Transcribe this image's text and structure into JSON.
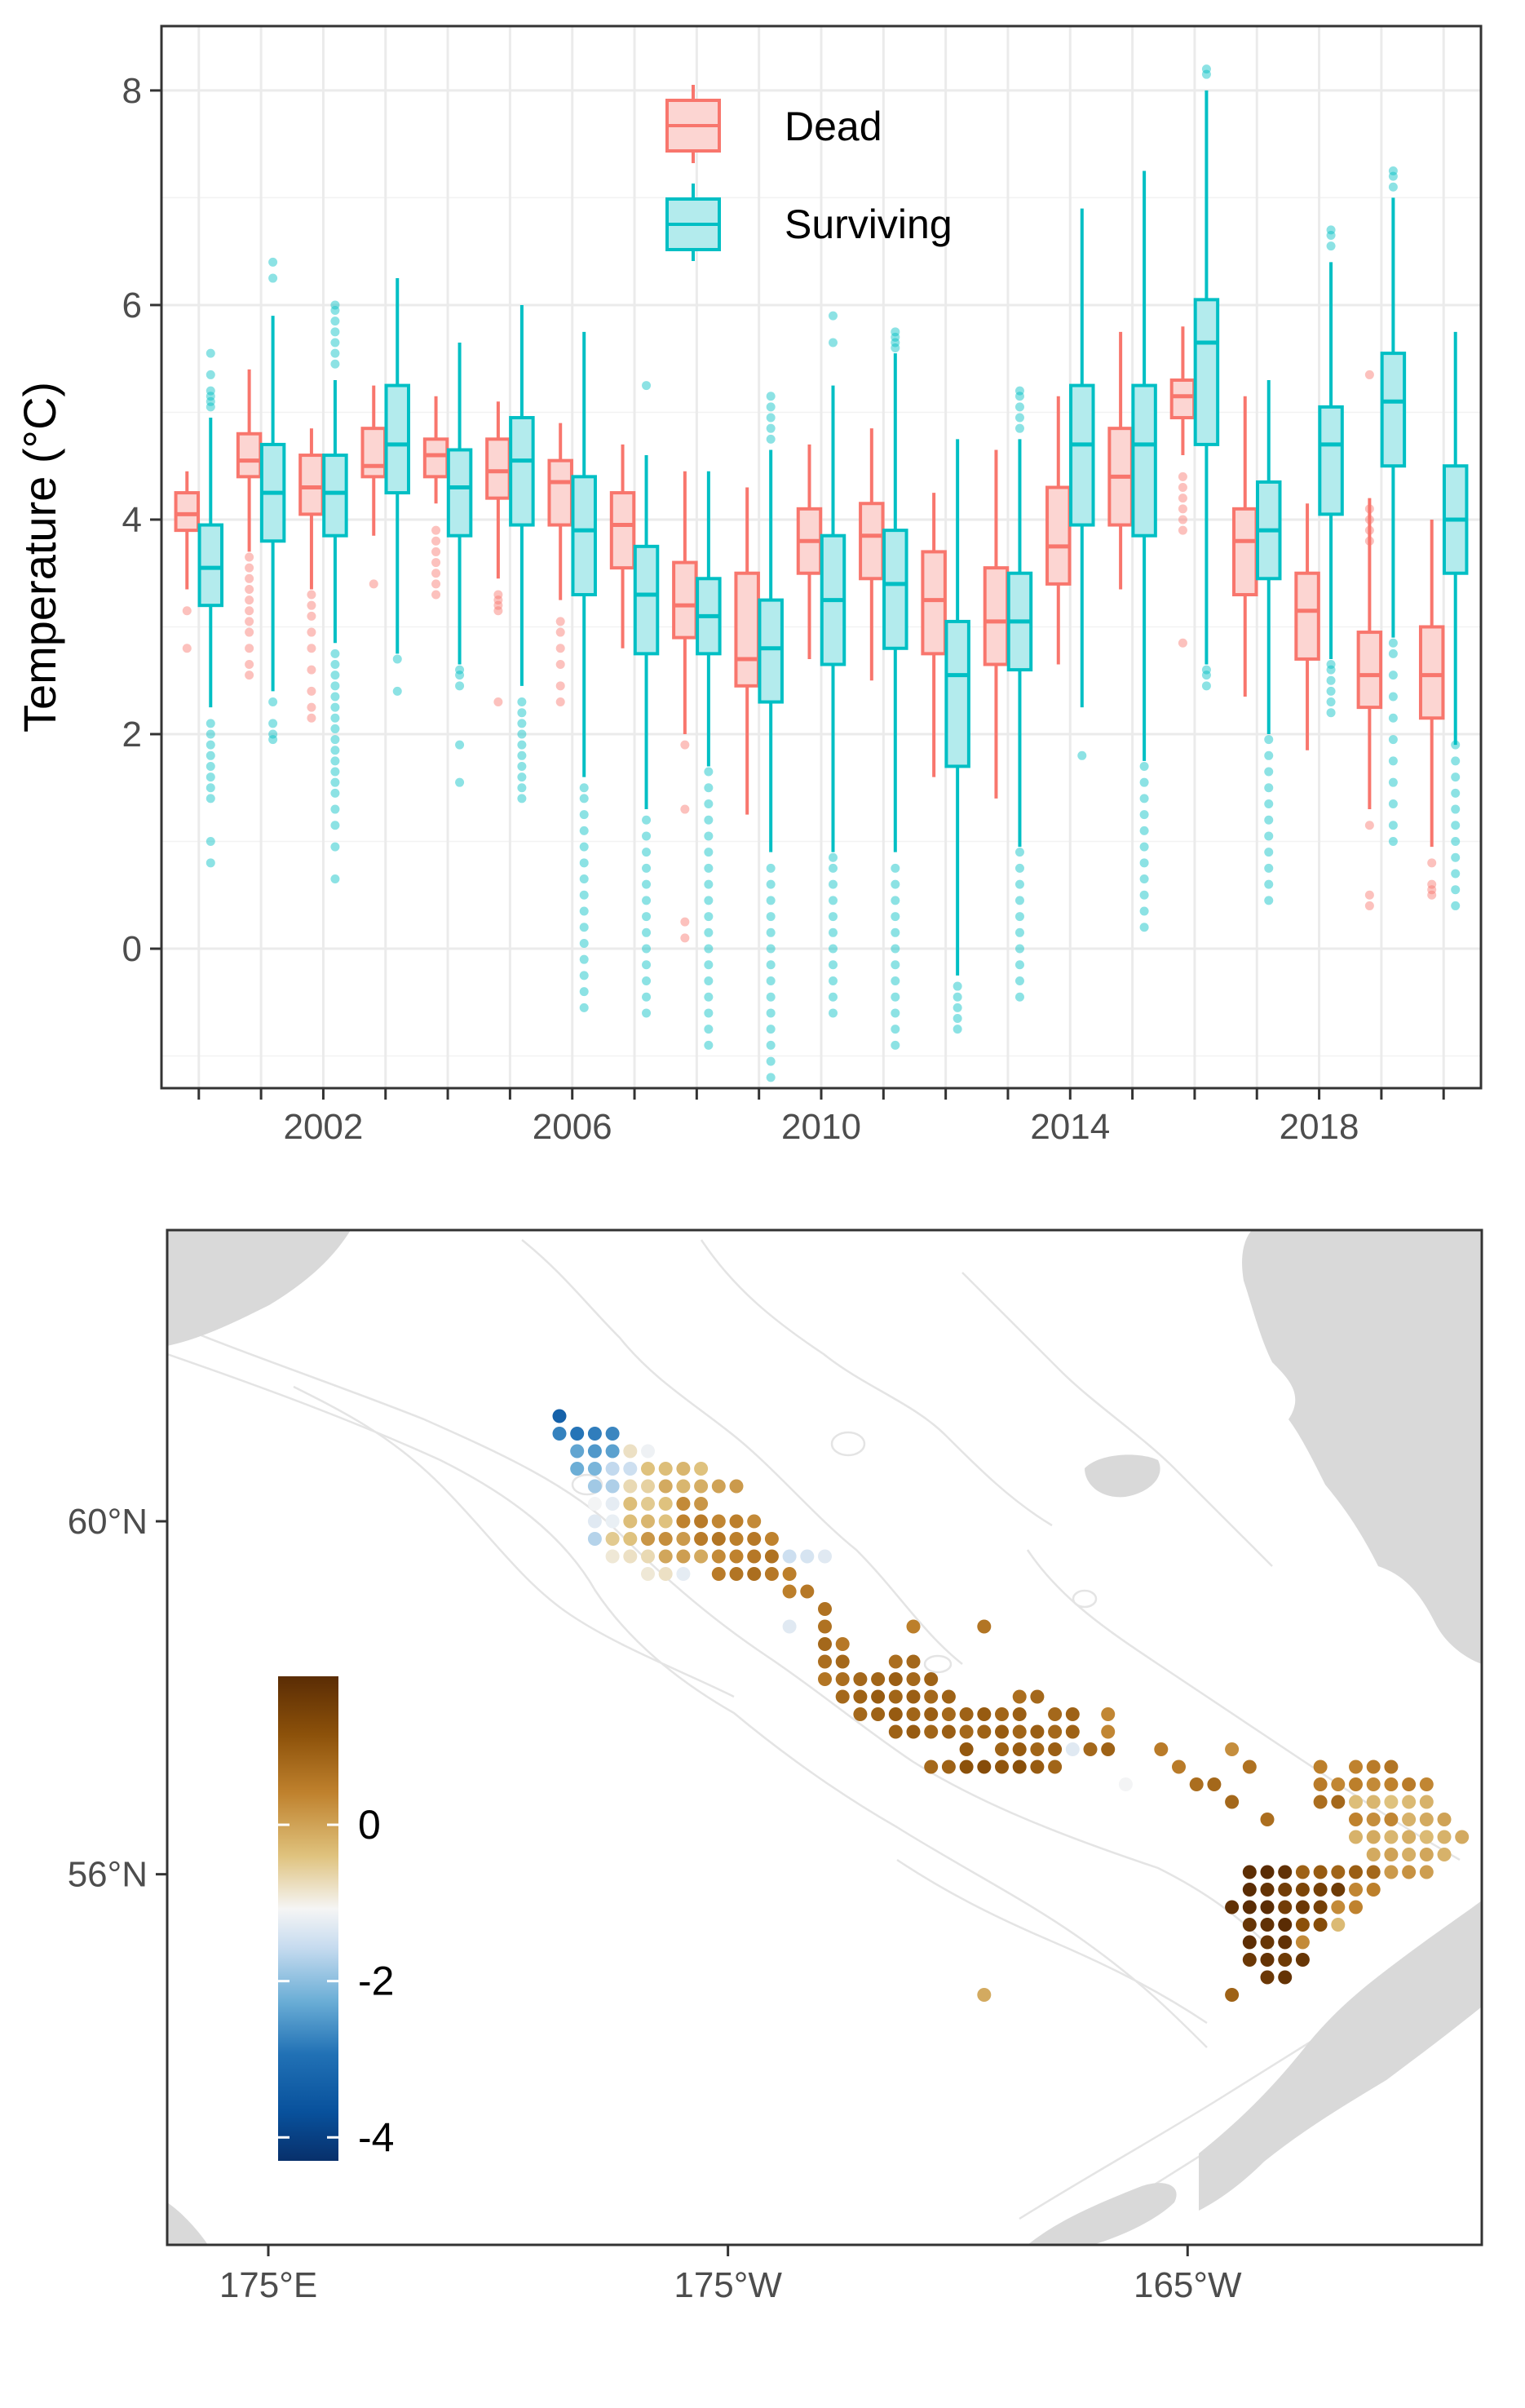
{
  "chart_data": [
    {
      "type": "box",
      "title": "",
      "xlabel": "",
      "ylabel": "Temperature (°C)",
      "ylim": [
        -1.3,
        8.6
      ],
      "yticks": [
        0,
        2,
        4,
        6,
        8
      ],
      "xlim": [
        1999.4,
        2020.6
      ],
      "xtick_labels": [
        "2002",
        "2006",
        "2010",
        "2014",
        "2018"
      ],
      "xtick_values": [
        2002,
        2006,
        2010,
        2014,
        2018
      ],
      "grid": true,
      "legend_position": "top-center",
      "years": [
        2000,
        2001,
        2002,
        2003,
        2004,
        2005,
        2006,
        2007,
        2008,
        2009,
        2010,
        2011,
        2012,
        2013,
        2014,
        2015,
        2016,
        2017,
        2018,
        2019,
        2020
      ],
      "series": [
        {
          "name": "Dead",
          "color": "#F8766D",
          "fill": "#FCD5D2",
          "boxes": [
            {
              "wl": 3.35,
              "q1": 3.9,
              "med": 4.05,
              "q3": 4.25,
              "wh": 4.45,
              "outliers": [
                2.8,
                3.15
              ]
            },
            {
              "wl": 3.7,
              "q1": 4.4,
              "med": 4.55,
              "q3": 4.8,
              "wh": 5.4,
              "outliers": [
                2.55,
                2.65,
                2.8,
                2.95,
                3.05,
                3.15,
                3.25,
                3.35,
                3.45,
                3.55,
                3.65
              ]
            },
            {
              "wl": 3.35,
              "q1": 4.05,
              "med": 4.3,
              "q3": 4.6,
              "wh": 4.85,
              "outliers": [
                2.15,
                2.25,
                2.4,
                2.6,
                2.8,
                2.95,
                3.1,
                3.2,
                3.3
              ]
            },
            {
              "wl": 3.85,
              "q1": 4.4,
              "med": 4.5,
              "q3": 4.85,
              "wh": 5.25,
              "outliers": [
                3.4
              ]
            },
            {
              "wl": 4.15,
              "q1": 4.4,
              "med": 4.6,
              "q3": 4.75,
              "wh": 5.15,
              "outliers": [
                3.3,
                3.4,
                3.5,
                3.6,
                3.7,
                3.8,
                3.9
              ]
            },
            {
              "wl": 3.45,
              "q1": 4.2,
              "med": 4.45,
              "q3": 4.75,
              "wh": 5.1,
              "outliers": [
                2.3,
                3.15,
                3.2,
                3.25,
                3.3
              ]
            },
            {
              "wl": 3.25,
              "q1": 3.95,
              "med": 4.35,
              "q3": 4.55,
              "wh": 4.9,
              "outliers": [
                2.3,
                2.45,
                2.65,
                2.8,
                2.95,
                3.05
              ]
            },
            {
              "wl": 2.8,
              "q1": 3.55,
              "med": 3.95,
              "q3": 4.25,
              "wh": 4.7,
              "outliers": []
            },
            {
              "wl": 2.0,
              "q1": 2.9,
              "med": 3.2,
              "q3": 3.6,
              "wh": 4.45,
              "outliers": [
                0.1,
                0.25,
                1.3,
                1.9
              ]
            },
            {
              "wl": 1.25,
              "q1": 2.45,
              "med": 2.7,
              "q3": 3.5,
              "wh": 4.3,
              "outliers": []
            },
            {
              "wl": 2.7,
              "q1": 3.5,
              "med": 3.8,
              "q3": 4.1,
              "wh": 4.7,
              "outliers": []
            },
            {
              "wl": 2.5,
              "q1": 3.45,
              "med": 3.85,
              "q3": 4.15,
              "wh": 4.85,
              "outliers": []
            },
            {
              "wl": 1.6,
              "q1": 2.75,
              "med": 3.25,
              "q3": 3.7,
              "wh": 4.25,
              "outliers": []
            },
            {
              "wl": 1.4,
              "q1": 2.65,
              "med": 3.05,
              "q3": 3.55,
              "wh": 4.65,
              "outliers": []
            },
            {
              "wl": 2.65,
              "q1": 3.4,
              "med": 3.75,
              "q3": 4.3,
              "wh": 5.15,
              "outliers": []
            },
            {
              "wl": 3.35,
              "q1": 3.95,
              "med": 4.4,
              "q3": 4.85,
              "wh": 5.75,
              "outliers": []
            },
            {
              "wl": 4.6,
              "q1": 4.95,
              "med": 5.15,
              "q3": 5.3,
              "wh": 5.8,
              "outliers": [
                2.85,
                3.9,
                4.0,
                4.1,
                4.2,
                4.3,
                4.4
              ]
            },
            {
              "wl": 2.35,
              "q1": 3.3,
              "med": 3.8,
              "q3": 4.1,
              "wh": 5.15,
              "outliers": []
            },
            {
              "wl": 1.85,
              "q1": 2.7,
              "med": 3.15,
              "q3": 3.5,
              "wh": 4.15,
              "outliers": []
            },
            {
              "wl": 1.3,
              "q1": 2.25,
              "med": 2.55,
              "q3": 2.95,
              "wh": 4.2,
              "outliers": [
                0.4,
                0.5,
                1.15,
                3.8,
                3.9,
                4.0,
                4.1,
                5.35
              ]
            },
            {
              "wl": 0.95,
              "q1": 2.15,
              "med": 2.55,
              "q3": 3.0,
              "wh": 4.0,
              "outliers": [
                0.5,
                0.55,
                0.6,
                0.8
              ]
            }
          ]
        },
        {
          "name": "Surviving",
          "color": "#00BFC4",
          "fill": "#B3EBED",
          "boxes": [
            {
              "wl": 2.25,
              "q1": 3.2,
              "med": 3.55,
              "q3": 3.95,
              "wh": 4.95,
              "outliers": [
                0.8,
                1.0,
                1.4,
                1.5,
                1.6,
                1.7,
                1.8,
                1.9,
                2.0,
                2.1,
                5.05,
                5.1,
                5.15,
                5.2,
                5.35,
                5.55
              ]
            },
            {
              "wl": 2.4,
              "q1": 3.8,
              "med": 4.25,
              "q3": 4.7,
              "wh": 5.9,
              "outliers": [
                1.95,
                2.0,
                2.1,
                2.3,
                6.25,
                6.4
              ]
            },
            {
              "wl": 2.85,
              "q1": 3.85,
              "med": 4.25,
              "q3": 4.6,
              "wh": 5.3,
              "outliers": [
                0.65,
                0.95,
                1.15,
                1.3,
                1.45,
                1.55,
                1.65,
                1.75,
                1.85,
                1.95,
                2.05,
                2.15,
                2.25,
                2.35,
                2.45,
                2.55,
                2.65,
                2.75,
                5.45,
                5.55,
                5.65,
                5.75,
                5.85,
                5.95,
                6.0
              ]
            },
            {
              "wl": 2.75,
              "q1": 4.25,
              "med": 4.7,
              "q3": 5.25,
              "wh": 6.25,
              "outliers": [
                2.4,
                2.7
              ]
            },
            {
              "wl": 2.65,
              "q1": 3.85,
              "med": 4.3,
              "q3": 4.65,
              "wh": 5.65,
              "outliers": [
                1.55,
                1.9,
                2.45,
                2.55,
                2.6
              ]
            },
            {
              "wl": 2.45,
              "q1": 3.95,
              "med": 4.55,
              "q3": 4.95,
              "wh": 6.0,
              "outliers": [
                1.4,
                1.5,
                1.6,
                1.7,
                1.8,
                1.9,
                2.0,
                2.1,
                2.2,
                2.3
              ]
            },
            {
              "wl": 1.6,
              "q1": 3.3,
              "med": 3.9,
              "q3": 4.4,
              "wh": 5.75,
              "outliers": [
                -0.55,
                -0.4,
                -0.25,
                -0.1,
                0.05,
                0.2,
                0.35,
                0.5,
                0.65,
                0.8,
                0.95,
                1.1,
                1.25,
                1.4,
                1.5
              ]
            },
            {
              "wl": 1.3,
              "q1": 2.75,
              "med": 3.3,
              "q3": 3.75,
              "wh": 4.6,
              "outliers": [
                -0.6,
                -0.45,
                -0.3,
                -0.15,
                0.0,
                0.15,
                0.3,
                0.45,
                0.6,
                0.75,
                0.9,
                1.05,
                1.2,
                5.25
              ]
            },
            {
              "wl": 1.7,
              "q1": 2.75,
              "med": 3.1,
              "q3": 3.45,
              "wh": 4.45,
              "outliers": [
                -0.9,
                -0.75,
                -0.6,
                -0.45,
                -0.3,
                -0.15,
                0.0,
                0.15,
                0.3,
                0.45,
                0.6,
                0.75,
                0.9,
                1.05,
                1.2,
                1.35,
                1.5,
                1.65
              ]
            },
            {
              "wl": 0.9,
              "q1": 2.3,
              "med": 2.8,
              "q3": 3.25,
              "wh": 4.65,
              "outliers": [
                -1.2,
                -1.05,
                -0.9,
                -0.75,
                -0.6,
                -0.45,
                -0.3,
                -0.15,
                0.0,
                0.15,
                0.3,
                0.45,
                0.6,
                0.75,
                4.75,
                4.85,
                4.95,
                5.05,
                5.15
              ]
            },
            {
              "wl": 0.9,
              "q1": 2.65,
              "med": 3.25,
              "q3": 3.85,
              "wh": 5.25,
              "outliers": [
                -0.6,
                -0.45,
                -0.3,
                -0.15,
                0.0,
                0.15,
                0.3,
                0.45,
                0.6,
                0.75,
                0.85,
                5.65,
                5.9
              ]
            },
            {
              "wl": 0.9,
              "q1": 2.8,
              "med": 3.4,
              "q3": 3.9,
              "wh": 5.55,
              "outliers": [
                -0.9,
                -0.75,
                -0.6,
                -0.45,
                -0.3,
                -0.15,
                0.0,
                0.15,
                0.3,
                0.45,
                0.6,
                0.75,
                5.6,
                5.65,
                5.7,
                5.75
              ]
            },
            {
              "wl": -0.25,
              "q1": 1.7,
              "med": 2.55,
              "q3": 3.05,
              "wh": 4.75,
              "outliers": [
                -0.75,
                -0.65,
                -0.55,
                -0.45,
                -0.35
              ]
            },
            {
              "wl": 0.95,
              "q1": 2.6,
              "med": 3.05,
              "q3": 3.5,
              "wh": 4.75,
              "outliers": [
                -0.45,
                -0.3,
                -0.15,
                0.0,
                0.15,
                0.3,
                0.45,
                0.6,
                0.75,
                0.9,
                4.85,
                4.95,
                5.05,
                5.15,
                5.2
              ]
            },
            {
              "wl": 2.25,
              "q1": 3.95,
              "med": 4.7,
              "q3": 5.25,
              "wh": 6.9,
              "outliers": [
                1.8
              ]
            },
            {
              "wl": 1.75,
              "q1": 3.85,
              "med": 4.7,
              "q3": 5.25,
              "wh": 7.25,
              "outliers": [
                0.2,
                0.35,
                0.5,
                0.65,
                0.8,
                0.95,
                1.1,
                1.25,
                1.4,
                1.55,
                1.7
              ]
            },
            {
              "wl": 2.65,
              "q1": 4.7,
              "med": 5.65,
              "q3": 6.05,
              "wh": 8.0,
              "outliers": [
                2.45,
                2.55,
                2.6,
                8.15,
                8.2
              ]
            },
            {
              "wl": 2.0,
              "q1": 3.45,
              "med": 3.9,
              "q3": 4.35,
              "wh": 5.3,
              "outliers": [
                0.45,
                0.6,
                0.75,
                0.9,
                1.05,
                1.2,
                1.35,
                1.5,
                1.65,
                1.8,
                1.95
              ]
            },
            {
              "wl": 2.7,
              "q1": 4.05,
              "med": 4.7,
              "q3": 5.05,
              "wh": 6.4,
              "outliers": [
                2.2,
                2.3,
                2.4,
                2.5,
                2.6,
                2.65,
                6.55,
                6.65,
                6.7
              ]
            },
            {
              "wl": 2.9,
              "q1": 4.5,
              "med": 5.1,
              "q3": 5.55,
              "wh": 7.0,
              "outliers": [
                1.0,
                1.15,
                1.35,
                1.55,
                1.75,
                1.95,
                2.15,
                2.35,
                2.55,
                2.75,
                2.85,
                7.1,
                7.2,
                7.25
              ]
            },
            {
              "wl": 1.9,
              "q1": 3.5,
              "med": 4.0,
              "q3": 4.5,
              "wh": 5.75,
              "outliers": [
                0.4,
                0.55,
                0.7,
                0.85,
                1.0,
                1.15,
                1.3,
                1.45,
                1.6,
                1.75,
                1.9
              ]
            }
          ]
        }
      ]
    },
    {
      "type": "map",
      "title": "",
      "xtick_labels": [
        "175°E",
        "175°W",
        "165°W"
      ],
      "xtick_values": [
        175,
        185,
        195
      ],
      "ytick_labels": [
        "60°N",
        "56°N"
      ],
      "ytick_values": [
        60,
        56
      ],
      "lon_range": [
        172.8,
        201.4
      ],
      "lat_range": [
        51.8,
        63.3
      ],
      "land_color": "#d9d9d9",
      "colorbar": {
        "ticks": [
          0,
          -2,
          -4
        ],
        "tick_labels": [
          "0",
          "-2",
          "-4"
        ],
        "range": [
          -4.3,
          1.9
        ],
        "position": "left",
        "colors": [
          "#08306b",
          "#08519c",
          "#2171b5",
          "#6baed6",
          "#c6dbef",
          "#f5f5f5",
          "#dfc27d",
          "#bf812d",
          "#8c510a",
          "#5a2c04"
        ]
      }
    }
  ]
}
